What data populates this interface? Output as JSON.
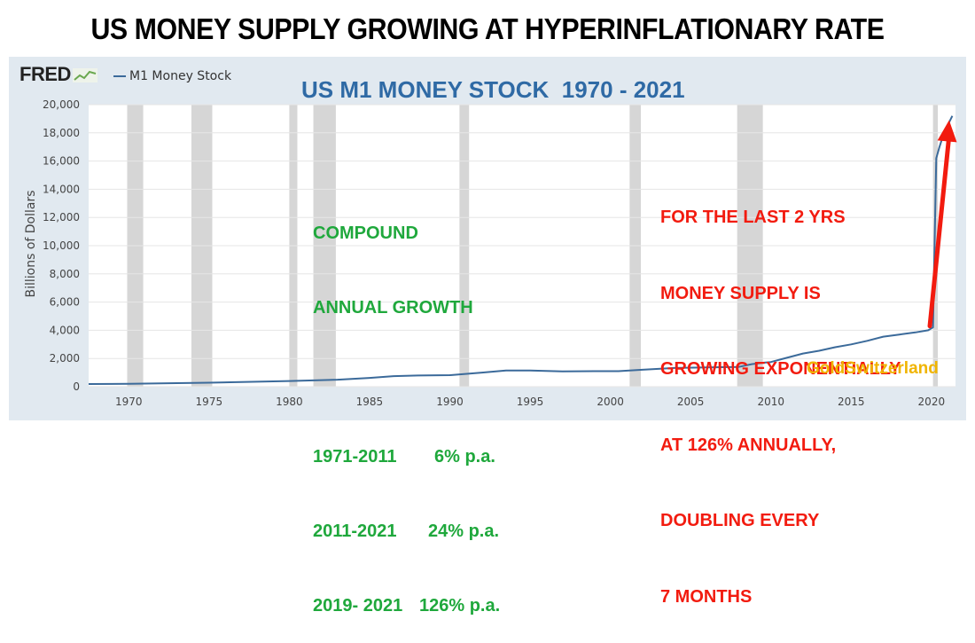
{
  "headline": "US MONEY SUPPLY GROWING AT HYPERINFLATIONARY RATE",
  "fred_logo": "FRED",
  "legend_label": "M1 Money Stock",
  "overlay_title": "US M1 MONEY STOCK  1970 - 2021",
  "annotation_growth": {
    "heading_lines": [
      "COMPOUND",
      "ANNUAL GROWTH"
    ],
    "rows": [
      {
        "period": "1971-2011",
        "rate": "6% p.a."
      },
      {
        "period": "2011-2021",
        "rate": "24% p.a."
      },
      {
        "period": "2019- 2021",
        "rate": "126% p.a."
      }
    ]
  },
  "annotation_exponential": [
    "FOR THE LAST 2 YRS",
    "MONEY SUPPLY IS",
    "GROWING EXPONENTIALLY",
    "AT 126% ANNUALLY,",
    "DOUBLING EVERY",
    "7 MONTHS"
  ],
  "watermark": "GoldSwitzerland",
  "colors": {
    "series": "#3b6a9a",
    "recession": "#d6d6d6",
    "growth_text": "#1fa83c",
    "alert_text": "#f21b0f",
    "arrow": "#f21b0f",
    "watermark": "#f0b400",
    "panel": "#e1e9f0"
  },
  "chart_data": {
    "type": "line",
    "title": "US M1 MONEY STOCK  1970 - 2021",
    "ylabel": "Billions of Dollars",
    "xlabel": "",
    "xlim": [
      1967.5,
      2021.5
    ],
    "ylim": [
      0,
      20000
    ],
    "x_ticks": [
      1970,
      1975,
      1980,
      1985,
      1990,
      1995,
      2000,
      2005,
      2010,
      2015,
      2020
    ],
    "y_ticks": [
      0,
      2000,
      4000,
      6000,
      8000,
      10000,
      12000,
      14000,
      16000,
      18000,
      20000
    ],
    "y_tick_labels": [
      "0",
      "2,000",
      "4,000",
      "6,000",
      "8,000",
      "10,000",
      "12,000",
      "14,000",
      "16,000",
      "18,000",
      "20,000"
    ],
    "grid": true,
    "legend": "top-left",
    "recessions": [
      [
        1969.9,
        1970.9
      ],
      [
        1973.9,
        1975.2
      ],
      [
        1980.0,
        1980.5
      ],
      [
        1981.5,
        1982.9
      ],
      [
        1990.6,
        1991.2
      ],
      [
        2001.2,
        2001.9
      ],
      [
        2007.9,
        2009.5
      ],
      [
        2020.1,
        2020.4
      ]
    ],
    "series": [
      {
        "name": "M1 Money Stock",
        "x": [
          1967.5,
          1970,
          1975,
          1980,
          1983,
          1985,
          1986.5,
          1988,
          1990,
          1992,
          1993.5,
          1995,
          1997,
          1999,
          2000.5,
          2002,
          2004,
          2006,
          2008,
          2008.8,
          2009.5,
          2010,
          2011,
          2012,
          2013,
          2014,
          2015,
          2016,
          2017,
          2018,
          2019,
          2019.8,
          2020.1,
          2020.3,
          2020.5,
          2020.7,
          2021,
          2021.3
        ],
        "y": [
          190,
          210,
          285,
          400,
          500,
          620,
          750,
          790,
          820,
          1000,
          1150,
          1150,
          1080,
          1100,
          1100,
          1200,
          1330,
          1370,
          1400,
          1600,
          1700,
          1750,
          2050,
          2350,
          2550,
          2800,
          3000,
          3250,
          3550,
          3700,
          3850,
          4000,
          4200,
          16200,
          17000,
          17700,
          18500,
          19200
        ]
      }
    ],
    "annotations": [
      "COMPOUND ANNUAL GROWTH",
      "1971-2011 6% p.a.",
      "2011-2021 24% p.a.",
      "2019- 2021 126% p.a.",
      "FOR THE LAST 2 YRS MONEY SUPPLY IS GROWING EXPONENTIALLY AT 126% ANNUALLY, DOUBLING EVERY 7 MONTHS"
    ]
  }
}
